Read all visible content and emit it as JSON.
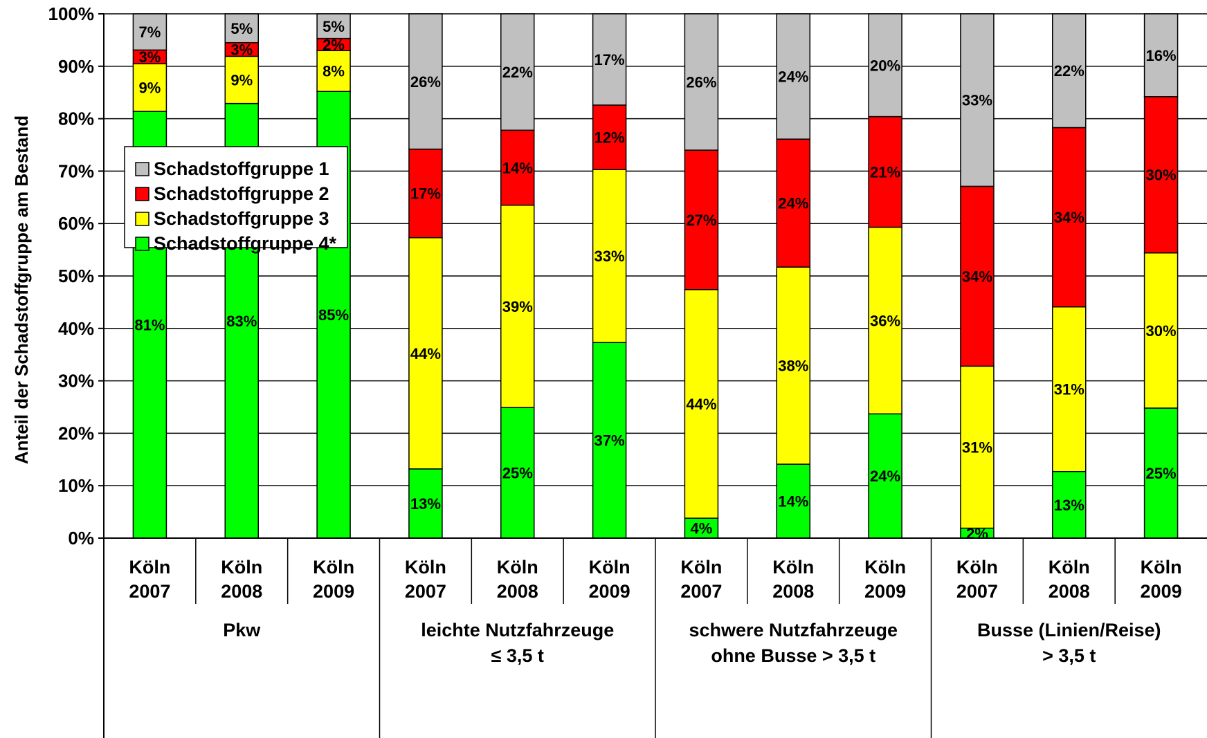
{
  "chart_data": {
    "type": "bar",
    "stacked": true,
    "percent": true,
    "ylabel": "Anteil der Schadstoffgruppe am Bestand",
    "xlabel": "",
    "title": "",
    "ylim": [
      0,
      100
    ],
    "yticks": [
      "0%",
      "10%",
      "20%",
      "30%",
      "40%",
      "50%",
      "60%",
      "70%",
      "80%",
      "90%",
      "100%"
    ],
    "grid": true,
    "legend_position": "upper-left",
    "categories": [
      [
        "Köln",
        "2007"
      ],
      [
        "Köln",
        "2008"
      ],
      [
        "Köln",
        "2009"
      ],
      [
        "Köln",
        "2007"
      ],
      [
        "Köln",
        "2008"
      ],
      [
        "Köln",
        "2009"
      ],
      [
        "Köln",
        "2007"
      ],
      [
        "Köln",
        "2008"
      ],
      [
        "Köln",
        "2009"
      ],
      [
        "Köln",
        "2007"
      ],
      [
        "Köln",
        "2008"
      ],
      [
        "Köln",
        "2009"
      ]
    ],
    "groups": [
      {
        "label": [
          "Pkw"
        ],
        "count": 3
      },
      {
        "label": [
          "leichte Nutzfahrzeuge",
          "≤ 3,5 t"
        ],
        "count": 3
      },
      {
        "label": [
          "schwere Nutzfahrzeuge",
          "ohne Busse > 3,5 t"
        ],
        "count": 3
      },
      {
        "label": [
          "Busse (Linien/Reise)",
          "> 3,5 t"
        ],
        "count": 3
      }
    ],
    "series_draw_order": [
      3,
      2,
      1,
      0
    ],
    "series": [
      {
        "name": "Schadstoffgruppe 1",
        "color": "#C0C0C0",
        "values": [
          6.9,
          5.5,
          4.7,
          25.8,
          22.2,
          17.4,
          26.0,
          23.9,
          19.6,
          32.9,
          21.7,
          15.8
        ],
        "labels": [
          "7%",
          "5%",
          "5%",
          "26%",
          "22%",
          "17%",
          "26%",
          "24%",
          "20%",
          "33%",
          "22%",
          "16%"
        ]
      },
      {
        "name": "Schadstoffgruppe 2",
        "color": "#FF0000",
        "values": [
          2.6,
          2.6,
          2.3,
          16.9,
          14.3,
          12.3,
          26.6,
          24.4,
          21.1,
          34.3,
          34.2,
          29.8
        ],
        "labels": [
          "3%",
          "3%",
          "2%",
          "17%",
          "14%",
          "12%",
          "27%",
          "24%",
          "21%",
          "34%",
          "34%",
          "30%"
        ]
      },
      {
        "name": "Schadstoffgruppe 3",
        "color": "#FFFF00",
        "values": [
          9.1,
          9.0,
          7.8,
          44.1,
          38.6,
          33.0,
          43.6,
          37.6,
          35.6,
          30.9,
          31.4,
          29.6
        ],
        "labels": [
          "9%",
          "9%",
          "8%",
          "44%",
          "39%",
          "33%",
          "44%",
          "38%",
          "36%",
          "31%",
          "31%",
          "30%"
        ]
      },
      {
        "name": "Schadstoffgruppe 4*",
        "color": "#00FF00",
        "values": [
          81.4,
          82.9,
          85.2,
          13.2,
          24.9,
          37.3,
          3.8,
          14.1,
          23.7,
          1.9,
          12.7,
          24.8
        ],
        "labels": [
          "81%",
          "83%",
          "85%",
          "13%",
          "25%",
          "37%",
          "4%",
          "14%",
          "24%",
          "2%",
          "13%",
          "25%"
        ]
      }
    ]
  }
}
